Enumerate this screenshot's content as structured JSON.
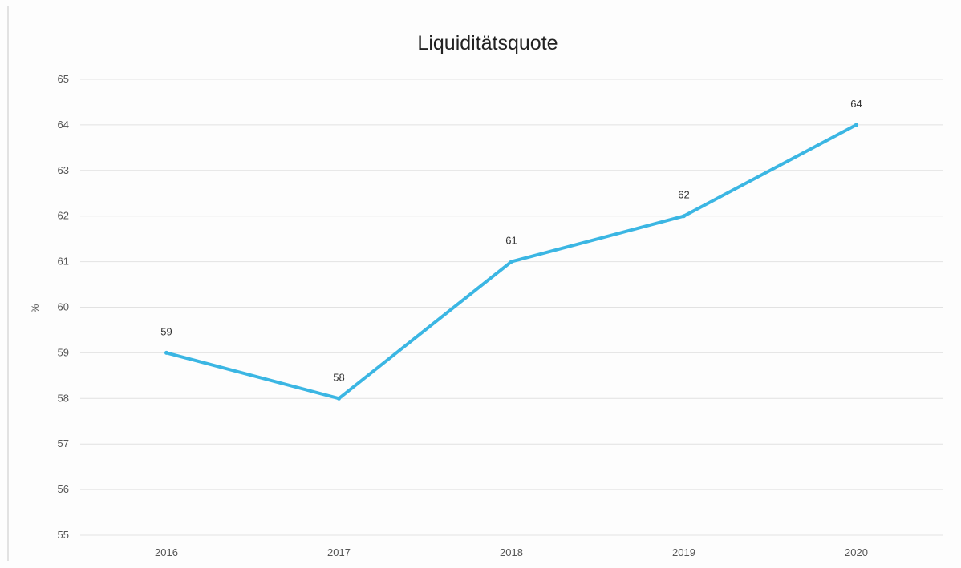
{
  "chart_data": {
    "type": "line",
    "title": "Liquiditätsquote",
    "xlabel": "",
    "ylabel": "%",
    "categories": [
      "2016",
      "2017",
      "2018",
      "2019",
      "2020"
    ],
    "series": [
      {
        "values": [
          59,
          58,
          61,
          62,
          64
        ],
        "color": "#3bb6e3"
      }
    ],
    "data_labels": [
      "59",
      "58",
      "61",
      "62",
      "64"
    ],
    "ylim": [
      55,
      65
    ],
    "yticks": [
      "55",
      "56",
      "57",
      "58",
      "59",
      "60",
      "61",
      "62",
      "63",
      "64",
      "65"
    ],
    "grid": true,
    "legend": "none",
    "colors": {
      "line": "#3bb6e3",
      "grid": "#e2e2e2"
    }
  }
}
